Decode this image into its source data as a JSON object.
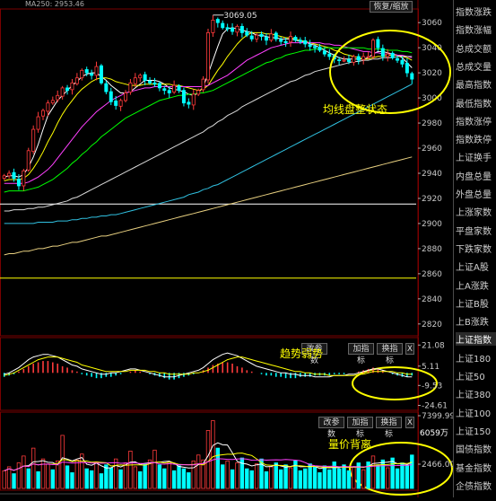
{
  "top_bar": {
    "ma_label": "MA250: 2953.46",
    "reset_button": "恢复/缩放"
  },
  "sidebar": [
    "指数涨跌",
    "指数涨幅",
    "总成交额",
    "总成交量",
    "最高指数",
    "最低指数",
    "指数涨停",
    "指数跌停",
    "上证换手",
    "内盘总量",
    "外盘总量",
    "上涨家数",
    "平盘家数",
    "下跌家数",
    "上证A股",
    "上A涨跌",
    "上证B股",
    "上B涨跌",
    "上证指数",
    "上证180",
    "上证50",
    "上证380",
    "上证100",
    "上证150",
    "国债指数",
    "基金指数",
    "企债指数"
  ],
  "toolbars": {
    "macd": [
      "改参数",
      "加指标",
      "换指标",
      "X"
    ],
    "volume": [
      "改参数",
      "加指标",
      "换指标",
      "X"
    ]
  },
  "annotations": {
    "ma_consolidation": "均线盘整状态",
    "trend_weak": "趋势弱势",
    "volume_price_divergence": "量价背离"
  },
  "colors": {
    "up": "#ff3b3b",
    "down": "#00ffff",
    "ma5": "#ffffff",
    "ma10": "#ffff00",
    "ma20": "#ff40ff",
    "ma30": "#00ff00",
    "ma60": "#d8d8d8",
    "ma120": "#30c0e0",
    "ma250": "#e8d080",
    "ellipse": "#ffff00",
    "grid": "#7a0000"
  },
  "chart_data": [
    {
      "type": "candlestick",
      "title": "",
      "price_high_label": "3069.05",
      "y_ticks": [
        3060,
        3040,
        3020,
        3000,
        2980,
        2960,
        2940,
        2920,
        2900,
        2880,
        2860,
        2840,
        2820
      ],
      "ylim": [
        2812,
        3068
      ],
      "horizontal_lines": [
        2915.5,
        2856.5
      ],
      "close": [
        2938,
        2940,
        2936,
        2930,
        2942,
        2958,
        2975,
        2985,
        2990,
        2996,
        2998,
        3002,
        3008,
        3006,
        3012,
        3016,
        3022,
        3020,
        3018,
        3025,
        3012,
        3005,
        2997,
        2994,
        2998,
        3004,
        3012,
        3016,
        3018,
        3014,
        3012,
        3011,
        3008,
        3006,
        3004,
        3010,
        3006,
        2996,
        2995,
        3003,
        3006,
        3015,
        3052,
        3062,
        3060,
        3056,
        3055,
        3053,
        3057,
        3052,
        3050,
        3047,
        3050,
        3049,
        3046,
        3051,
        3047,
        3045,
        3044,
        3049,
        3046,
        3045,
        3043,
        3041,
        3040,
        3038,
        3035,
        3033,
        3031,
        3030,
        3030,
        3029,
        3033,
        3030,
        3033,
        3033,
        3046,
        3040,
        3033,
        3035,
        3032,
        3030,
        3027,
        3020,
        3015
      ],
      "moving_averages": {
        "ma5": [
          2937,
          2938,
          2938,
          2937,
          2939,
          2945,
          2953,
          2963,
          2975,
          2986,
          2992,
          2998,
          3002,
          3006,
          3010,
          3013,
          3017,
          3019,
          3020,
          3020,
          3017,
          3014,
          3010,
          3007,
          3004,
          3004,
          3005,
          3008,
          3011,
          3014,
          3014,
          3014,
          3013,
          3011,
          3008,
          3007,
          3006,
          3005,
          3003,
          3002,
          3004,
          3009,
          3019,
          3030,
          3041,
          3051,
          3055,
          3056,
          3055,
          3054,
          3053,
          3052,
          3050,
          3050,
          3049,
          3048,
          3048,
          3047,
          3047,
          3047,
          3046,
          3045,
          3045,
          3043,
          3042,
          3040,
          3038,
          3036,
          3034,
          3032,
          3031,
          3031,
          3031,
          3031,
          3031,
          3032,
          3035,
          3037,
          3037,
          3036,
          3035,
          3034,
          3032,
          3028,
          3024
        ],
        "ma10": [
          2934,
          2935,
          2935,
          2935,
          2936,
          2939,
          2944,
          2950,
          2957,
          2965,
          2972,
          2980,
          2987,
          2993,
          2998,
          3003,
          3007,
          3010,
          3013,
          3015,
          3016,
          3016,
          3015,
          3013,
          3012,
          3011,
          3010,
          3010,
          3010,
          3011,
          3011,
          3011,
          3011,
          3011,
          3011,
          3010,
          3010,
          3009,
          3008,
          3007,
          3006,
          3007,
          3010,
          3016,
          3022,
          3027,
          3033,
          3038,
          3043,
          3047,
          3050,
          3052,
          3052,
          3052,
          3051,
          3051,
          3050,
          3049,
          3048,
          3048,
          3047,
          3046,
          3045,
          3044,
          3043,
          3042,
          3041,
          3040,
          3038,
          3037,
          3035,
          3034,
          3033,
          3032,
          3031,
          3031,
          3032,
          3033,
          3033,
          3034,
          3034,
          3034,
          3033,
          3032,
          3030
        ],
        "ma20": [
          2932,
          2932,
          2932,
          2932,
          2932,
          2933,
          2935,
          2937,
          2940,
          2943,
          2947,
          2952,
          2957,
          2962,
          2967,
          2972,
          2977,
          2981,
          2985,
          2989,
          2992,
          2995,
          2998,
          3000,
          3002,
          3004,
          3005,
          3006,
          3007,
          3008,
          3008,
          3009,
          3009,
          3009,
          3009,
          3009,
          3009,
          3009,
          3009,
          3009,
          3009,
          3009,
          3010,
          3012,
          3014,
          3016,
          3018,
          3021,
          3024,
          3027,
          3030,
          3032,
          3034,
          3036,
          3038,
          3040,
          3041,
          3042,
          3043,
          3044,
          3044,
          3044,
          3044,
          3044,
          3044,
          3044,
          3043,
          3043,
          3042,
          3042,
          3041,
          3040,
          3039,
          3038,
          3037,
          3037,
          3036,
          3036,
          3035,
          3035,
          3035,
          3034,
          3034,
          3033,
          3032
        ],
        "ma30": [
          2925,
          2926,
          2926,
          2926,
          2926,
          2927,
          2928,
          2929,
          2931,
          2933,
          2935,
          2938,
          2941,
          2944,
          2948,
          2951,
          2955,
          2958,
          2962,
          2965,
          2969,
          2972,
          2975,
          2978,
          2981,
          2984,
          2986,
          2988,
          2990,
          2992,
          2994,
          2996,
          2998,
          2999,
          3000,
          3001,
          3002,
          3002,
          3003,
          3003,
          3004,
          3004,
          3005,
          3006,
          3008,
          3010,
          3012,
          3014,
          3016,
          3018,
          3020,
          3022,
          3024,
          3026,
          3028,
          3029,
          3031,
          3032,
          3034,
          3035,
          3036,
          3037,
          3038,
          3038,
          3039,
          3039,
          3040,
          3040,
          3040,
          3040,
          3040,
          3040,
          3040,
          3040,
          3040,
          3039,
          3039,
          3039,
          3039,
          3038,
          3038,
          3038,
          3037,
          3037,
          3036
        ],
        "ma60": [
          2910,
          2910,
          2911,
          2911,
          2911,
          2912,
          2912,
          2913,
          2913,
          2914,
          2915,
          2916,
          2917,
          2918,
          2920,
          2921,
          2923,
          2925,
          2927,
          2929,
          2931,
          2933,
          2935,
          2937,
          2939,
          2941,
          2943,
          2945,
          2947,
          2949,
          2951,
          2953,
          2955,
          2957,
          2959,
          2961,
          2963,
          2965,
          2967,
          2969,
          2971,
          2973,
          2976,
          2978,
          2981,
          2983,
          2986,
          2988,
          2990,
          2993,
          2995,
          2997,
          2999,
          3001,
          3003,
          3005,
          3007,
          3009,
          3011,
          3013,
          3014,
          3016,
          3018,
          3019,
          3021,
          3022,
          3023,
          3024,
          3025,
          3026,
          3027,
          3028,
          3029,
          3029,
          3030,
          3030,
          3031,
          3031,
          3032,
          3032,
          3032,
          3033,
          3033,
          3033,
          3033
        ],
        "ma120": [
          2900,
          2900,
          2900,
          2900,
          2900,
          2900,
          2900,
          2901,
          2901,
          2901,
          2901,
          2902,
          2902,
          2902,
          2903,
          2903,
          2904,
          2904,
          2905,
          2905,
          2906,
          2906,
          2907,
          2907,
          2908,
          2909,
          2910,
          2911,
          2912,
          2913,
          2914,
          2915,
          2916,
          2917,
          2918,
          2919,
          2920,
          2921,
          2923,
          2924,
          2925,
          2927,
          2928,
          2930,
          2931,
          2933,
          2935,
          2937,
          2939,
          2941,
          2943,
          2945,
          2947,
          2949,
          2951,
          2953,
          2955,
          2957,
          2959,
          2961,
          2963,
          2965,
          2967,
          2969,
          2971,
          2973,
          2975,
          2977,
          2979,
          2981,
          2983,
          2985,
          2987,
          2989,
          2991,
          2993,
          2995,
          2997,
          2999,
          3001,
          3003,
          3005,
          3007,
          3009,
          3011
        ],
        "ma250": [
          2875,
          2876,
          2876,
          2877,
          2878,
          2878,
          2879,
          2880,
          2880,
          2881,
          2882,
          2882,
          2883,
          2884,
          2885,
          2885,
          2886,
          2887,
          2888,
          2889,
          2890,
          2890,
          2891,
          2892,
          2893,
          2894,
          2895,
          2896,
          2897,
          2898,
          2899,
          2900,
          2901,
          2902,
          2903,
          2904,
          2905,
          2906,
          2907,
          2908,
          2909,
          2910,
          2911,
          2912,
          2913,
          2914,
          2915,
          2916,
          2917,
          2918,
          2919,
          2920,
          2921,
          2922,
          2923,
          2924,
          2925,
          2926,
          2927,
          2928,
          2929,
          2930,
          2931,
          2932,
          2933,
          2934,
          2935,
          2936,
          2937,
          2938,
          2939,
          2940,
          2941,
          2942,
          2943,
          2944,
          2945,
          2946,
          2947,
          2948,
          2949,
          2950,
          2951,
          2952,
          2953
        ]
      }
    },
    {
      "type": "macd",
      "y_ticks": [
        21.08,
        5.11,
        -9.53,
        -24.61
      ],
      "ylim": [
        -27,
        24
      ],
      "hist": [
        -3,
        -2,
        -1,
        1,
        3,
        5,
        7,
        8,
        9,
        9,
        8,
        7,
        5,
        4,
        2,
        1,
        -1,
        -2,
        -3,
        -4,
        -4,
        -3,
        -3,
        -2,
        -1,
        0,
        1,
        2,
        1,
        0,
        -1,
        -2,
        -3,
        -4,
        -5,
        -5,
        -4,
        -3,
        -2,
        -1,
        0,
        2,
        4,
        6,
        7,
        8,
        8,
        7,
        5,
        4,
        2,
        1,
        0,
        -1,
        -2,
        -2,
        -3,
        -3,
        -4,
        -4,
        -4,
        -3,
        -3,
        -3,
        -2,
        -2,
        -2,
        -2,
        -1,
        -1,
        -1,
        0,
        0,
        1,
        2,
        3,
        4,
        3,
        2,
        0,
        -1,
        -2,
        -3,
        -3,
        -2
      ],
      "dif": [
        -1,
        0,
        2,
        4,
        7,
        10,
        12,
        13,
        14,
        14,
        13,
        12,
        10,
        8,
        6,
        5,
        3,
        2,
        1,
        0,
        -1,
        -1,
        0,
        0,
        1,
        2,
        3,
        3,
        2,
        1,
        0,
        -1,
        -2,
        -3,
        -3,
        -3,
        -2,
        -1,
        0,
        1,
        2,
        4,
        7,
        10,
        12,
        14,
        15,
        14,
        13,
        11,
        9,
        7,
        5,
        4,
        3,
        2,
        1,
        0,
        0,
        -1,
        -1,
        -2,
        -2,
        -2,
        -3,
        -3,
        -3,
        -3,
        -2,
        -2,
        -2,
        -1,
        -1,
        0,
        1,
        2,
        3,
        3,
        2,
        1,
        0,
        -1,
        -2,
        -3,
        -3
      ],
      "dea": [
        -2,
        -1,
        0,
        2,
        4,
        6,
        8,
        10,
        11,
        12,
        12,
        12,
        11,
        10,
        9,
        8,
        6,
        5,
        4,
        3,
        2,
        1,
        1,
        1,
        1,
        1,
        2,
        2,
        2,
        2,
        1,
        1,
        0,
        0,
        -1,
        -1,
        -1,
        -1,
        -1,
        0,
        0,
        1,
        2,
        4,
        6,
        8,
        10,
        11,
        12,
        12,
        11,
        10,
        9,
        8,
        7,
        6,
        5,
        4,
        3,
        2,
        1,
        1,
        0,
        0,
        -1,
        -1,
        -1,
        -2,
        -2,
        -2,
        -2,
        -2,
        -2,
        -1,
        -1,
        0,
        1,
        1,
        1,
        1,
        1,
        0,
        0,
        -1,
        -1
      ]
    },
    {
      "type": "volume",
      "y_ticks": [
        "7399.99",
        "2466.00"
      ],
      "header_value": "6059万",
      "ylim": [
        0,
        7400
      ],
      "volume": [
        1800,
        2200,
        1500,
        2600,
        3300,
        2000,
        4100,
        1700,
        3000,
        2500,
        1900,
        2800,
        5400,
        2300,
        1600,
        2900,
        3500,
        2000,
        1800,
        2700,
        1500,
        2400,
        2100,
        3000,
        1900,
        2600,
        3800,
        2200,
        1700,
        2500,
        2900,
        3900,
        2400,
        2000,
        2700,
        1800,
        2300,
        2000,
        1600,
        2800,
        3400,
        2900,
        5900,
        6900,
        4100,
        2400,
        2800,
        1900,
        2600,
        3100,
        2000,
        1800,
        2500,
        3000,
        1700,
        2200,
        2600,
        1900,
        2400,
        2100,
        2800,
        1800,
        2000,
        2500,
        2200,
        1600,
        2300,
        1900,
        2700,
        2000,
        2400,
        1800,
        2200,
        2600,
        1900,
        2700,
        3300,
        2400,
        2900,
        2100,
        3100,
        2000,
        2600,
        2300,
        3400
      ],
      "up": [
        1,
        1,
        0,
        1,
        1,
        0,
        1,
        0,
        1,
        1,
        0,
        1,
        1,
        0,
        0,
        1,
        1,
        0,
        0,
        1,
        0,
        0,
        0,
        1,
        0,
        1,
        1,
        1,
        0,
        0,
        1,
        1,
        0,
        0,
        1,
        0,
        0,
        0,
        0,
        1,
        1,
        1,
        1,
        1,
        0,
        0,
        1,
        0,
        1,
        0,
        0,
        0,
        1,
        0,
        0,
        1,
        0,
        0,
        0,
        1,
        0,
        0,
        0,
        0,
        0,
        0,
        0,
        0,
        0,
        0,
        0,
        0,
        1,
        0,
        1,
        0,
        1,
        0,
        0,
        1,
        0,
        0,
        0,
        0,
        0
      ]
    }
  ]
}
